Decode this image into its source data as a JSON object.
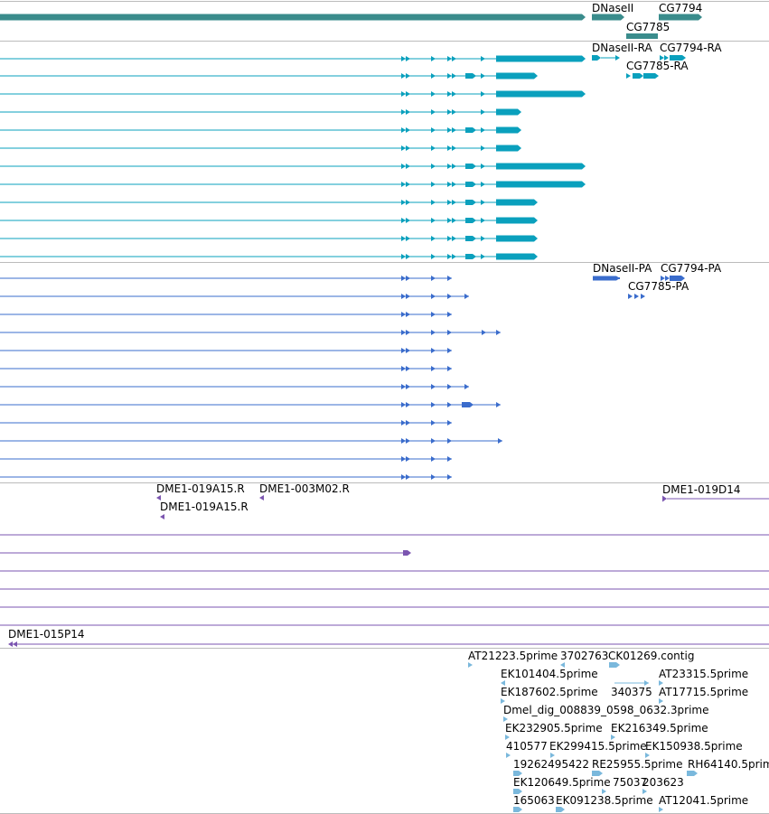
{
  "colors": {
    "gene": "#3a8c8c",
    "mrna": "#0aa0bd",
    "protein": "#3a6ccc",
    "clone": "#7b55b0",
    "est": "#7ab8dc",
    "divider": "#bbbbbb"
  },
  "genes": {
    "labels": [
      "DNaseII",
      "CG7794",
      "CG7785"
    ]
  },
  "transcripts": {
    "labels": [
      "DNaseII-RA",
      "CG7794-RA",
      "CG7785-RA"
    ],
    "row_count": 12
  },
  "proteins": {
    "labels": [
      "DNaseII-PA",
      "CG7794-PA",
      "CG7785-PA"
    ],
    "row_count": 12
  },
  "clones": {
    "labels": [
      "DME1-019A15.R",
      "DME1-003M02.R",
      "DME1-019D14",
      "DME1-019A15.R",
      "DME1-015P14"
    ]
  },
  "ests": {
    "labels": [
      "AT21223.5prime",
      "3702763",
      "CK01269.contig",
      "EK101404.5prime",
      "AT23315.5prime",
      "EK187602.5prime",
      "340375",
      "AT17715.5prime",
      "Dmel_dig_008839_0598_0632.3prime",
      "EK232905.5prime",
      "EK216349.5prime",
      "410577",
      "EK299415.5prime",
      "EK150938.5prime",
      "19262495422",
      "RE25955.5prime",
      "RH64140.5prime",
      "EK120649.5prime",
      "75037",
      "203623",
      "165063",
      "EK091238.5prime",
      "AT12041.5prime"
    ]
  }
}
